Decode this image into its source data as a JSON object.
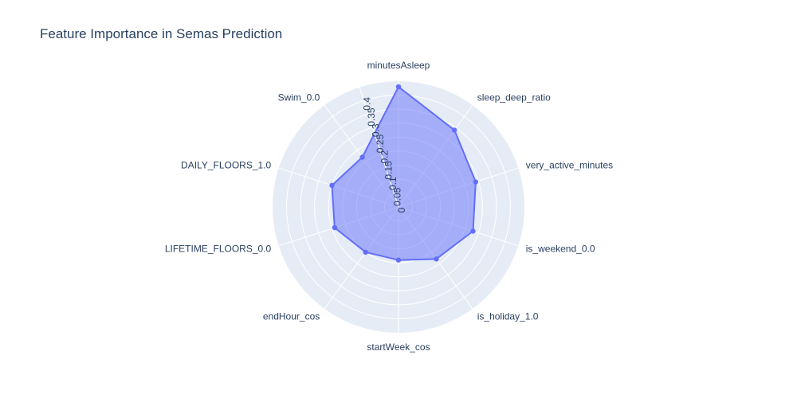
{
  "chart_data": {
    "type": "radar",
    "title": "Feature Importance in Semas Prediction",
    "categories": [
      "minutesAsleep",
      "sleep_deep_ratio",
      "very_active_minutes",
      "is_weekend_0.0",
      "is_holiday_1.0",
      "startWeek_cos",
      "endHour_cos",
      "LIFETIME_FLOORS_0.0",
      "DAILY_FLOORS_1.0",
      "Swim_0.0"
    ],
    "values": [
      0.43,
      0.34,
      0.29,
      0.28,
      0.23,
      0.19,
      0.2,
      0.24,
      0.25,
      0.22
    ],
    "radial_range": [
      0,
      0.45
    ],
    "radial_ticks": [
      0,
      0.05,
      0.1,
      0.15,
      0.2,
      0.25,
      0.3,
      0.35,
      0.4
    ],
    "radial_tick_labels": [
      "0",
      "0.05",
      "0.1",
      "0.15",
      "0.2",
      "0.25",
      "0.3",
      "0.35",
      "0.4"
    ],
    "grid": true,
    "colors": {
      "fill": "#636efa",
      "line": "#636efa",
      "polar_bg": "#e5ecf6",
      "grid": "#ffffff",
      "text": "#2a3f5f"
    }
  }
}
